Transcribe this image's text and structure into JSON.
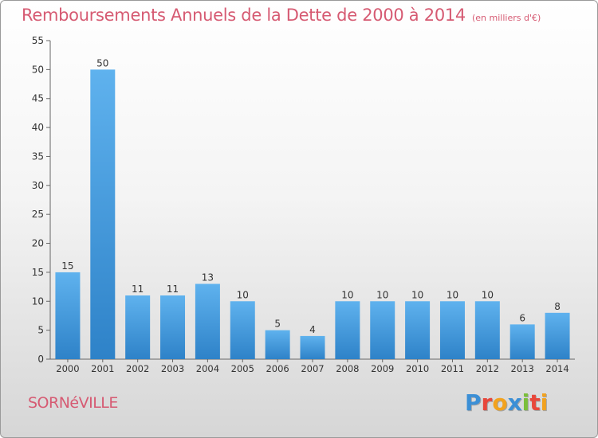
{
  "title": "Remboursements Annuels de la Dette de 2000 à 2014",
  "unit": "(en milliers d'€)",
  "commune": "SORNéVILLE",
  "logo": {
    "text": "Proxiti",
    "colors": [
      "#3b8fd6",
      "#e8473b",
      "#f2a21e",
      "#3b8fd6",
      "#7bbf3a",
      "#e8473b",
      "#f2a21e"
    ]
  },
  "chart_data": {
    "type": "bar",
    "categories": [
      "2000",
      "2001",
      "2002",
      "2003",
      "2004",
      "2005",
      "2006",
      "2007",
      "2008",
      "2009",
      "2010",
      "2011",
      "2012",
      "2013",
      "2014"
    ],
    "values": [
      15,
      50,
      11,
      11,
      13,
      10,
      5,
      4,
      10,
      10,
      10,
      10,
      10,
      6,
      8
    ],
    "title": "Remboursements Annuels de la Dette de 2000 à 2014",
    "xlabel": "",
    "ylabel": "",
    "ylim": [
      0,
      55
    ],
    "yticks": [
      0,
      5,
      10,
      15,
      20,
      25,
      30,
      35,
      40,
      45,
      50,
      55
    ],
    "grid": false,
    "bar_color": "#3f98dc"
  }
}
